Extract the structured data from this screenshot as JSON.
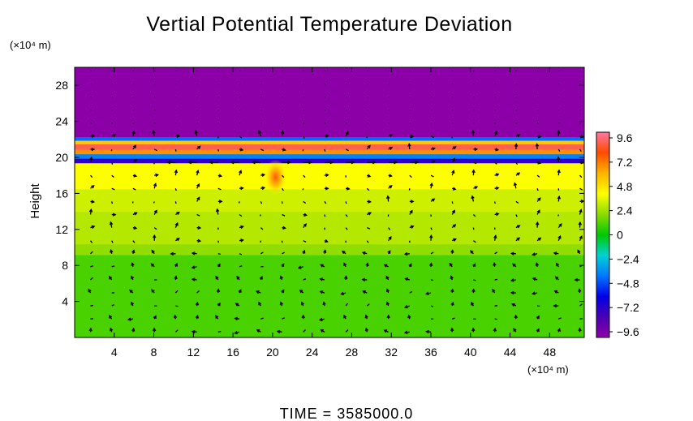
{
  "chart_data": {
    "type": "heatmap",
    "title": "Vertial Potential Temperature Deviation",
    "xlabel": "",
    "ylabel": "Height",
    "x_unit": "(×10⁴ m)",
    "y_unit": "(×10⁴ m)",
    "x_ticks": [
      4,
      8,
      12,
      16,
      20,
      24,
      28,
      32,
      36,
      40,
      44,
      48
    ],
    "y_ticks": [
      4,
      8,
      12,
      16,
      20,
      24,
      28
    ],
    "xlim": [
      0,
      51.5
    ],
    "ylim": [
      0,
      30
    ],
    "colorbar": {
      "ticks": [
        "9.6",
        "7.2",
        "4.8",
        "2.4",
        "0",
        "−2.4",
        "−4.8",
        "−7.2",
        "−9.6"
      ],
      "range": [
        -9.6,
        9.6
      ]
    },
    "layers": [
      {
        "y_from": 0,
        "y_to": 9.2,
        "value": 1.0
      },
      {
        "y_from": 9.2,
        "y_to": 10.4,
        "value": 2.0
      },
      {
        "y_from": 10.4,
        "y_to": 14.0,
        "value": 2.6
      },
      {
        "y_from": 14.0,
        "y_to": 16.5,
        "value": 3.0
      },
      {
        "y_from": 16.5,
        "y_to": 19.4,
        "value": 3.8
      },
      {
        "y_from": 19.4,
        "y_to": 19.9,
        "value": -7.0
      },
      {
        "y_from": 19.9,
        "y_to": 20.4,
        "value": -3.6
      },
      {
        "y_from": 20.4,
        "y_to": 20.9,
        "value": 6.4
      },
      {
        "y_from": 20.9,
        "y_to": 21.5,
        "value": 8.6
      },
      {
        "y_from": 21.5,
        "y_to": 21.9,
        "value": 5.2
      },
      {
        "y_from": 21.9,
        "y_to": 22.3,
        "value": -4.0
      },
      {
        "y_from": 22.3,
        "y_to": 30,
        "value": -9.6
      }
    ],
    "hot_spot": {
      "x": 20.3,
      "y": 17.8,
      "value": 6.5
    },
    "vectors_note": "wind vector field",
    "footer": "TIME  =  3585000.0"
  }
}
